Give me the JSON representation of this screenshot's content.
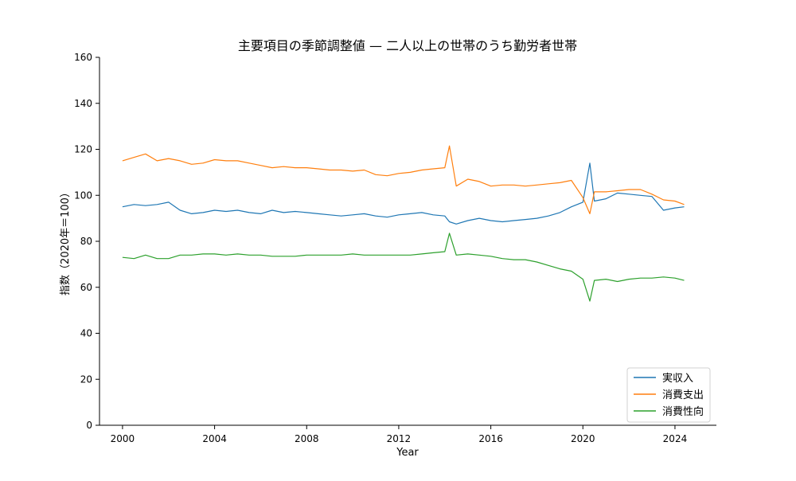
{
  "chart_data": {
    "type": "line",
    "title": "主要項目の季節調整値 — 二人以上の世帯のうち勤労者世帯",
    "xlabel": "Year",
    "ylabel": "指数（2020年＝100）",
    "xlim": [
      1999.0,
      2025.8
    ],
    "ylim": [
      0,
      160
    ],
    "x_ticks": [
      2000,
      2004,
      2008,
      2012,
      2016,
      2020,
      2024
    ],
    "y_ticks": [
      0,
      20,
      40,
      60,
      80,
      100,
      120,
      140,
      160
    ],
    "grid": false,
    "legend_position": "bottom-right",
    "x": [
      2000.0,
      2000.5,
      2001.0,
      2001.5,
      2002.0,
      2002.5,
      2003.0,
      2003.5,
      2004.0,
      2004.5,
      2005.0,
      2005.5,
      2006.0,
      2006.5,
      2007.0,
      2007.5,
      2008.0,
      2008.5,
      2009.0,
      2009.5,
      2010.0,
      2010.5,
      2011.0,
      2011.5,
      2012.0,
      2012.5,
      2013.0,
      2013.5,
      2014.0,
      2014.2,
      2014.5,
      2015.0,
      2015.5,
      2016.0,
      2016.5,
      2017.0,
      2017.5,
      2018.0,
      2018.5,
      2019.0,
      2019.5,
      2020.0,
      2020.3,
      2020.5,
      2021.0,
      2021.5,
      2022.0,
      2022.5,
      2023.0,
      2023.5,
      2024.0,
      2024.4
    ],
    "series": [
      {
        "name": "実収入",
        "color": "#1f77b4",
        "values": [
          95.0,
          96.0,
          95.5,
          96.0,
          97.0,
          93.5,
          92.0,
          92.5,
          93.5,
          93.0,
          93.5,
          92.5,
          92.0,
          93.5,
          92.5,
          93.0,
          92.5,
          92.0,
          91.5,
          91.0,
          91.5,
          92.0,
          91.0,
          90.5,
          91.5,
          92.0,
          92.5,
          91.5,
          91.0,
          88.5,
          87.5,
          89.0,
          90.0,
          89.0,
          88.5,
          89.0,
          89.5,
          90.0,
          91.0,
          92.5,
          95.0,
          97.0,
          114.0,
          97.5,
          98.5,
          101.0,
          100.5,
          100.0,
          99.5,
          93.5,
          94.5,
          95.0
        ]
      },
      {
        "name": "消費支出",
        "color": "#ff7f0e",
        "values": [
          115.0,
          116.5,
          118.0,
          115.0,
          116.0,
          115.0,
          113.5,
          114.0,
          115.5,
          115.0,
          115.0,
          114.0,
          113.0,
          112.0,
          112.5,
          112.0,
          112.0,
          111.5,
          111.0,
          111.0,
          110.5,
          111.0,
          109.0,
          108.5,
          109.5,
          110.0,
          111.0,
          111.5,
          112.0,
          121.5,
          104.0,
          107.0,
          106.0,
          104.0,
          104.5,
          104.5,
          104.0,
          104.5,
          105.0,
          105.5,
          106.5,
          99.0,
          92.0,
          101.5,
          101.5,
          102.0,
          102.5,
          102.5,
          100.5,
          98.0,
          97.5,
          96.0
        ]
      },
      {
        "name": "消費性向",
        "color": "#2ca02c",
        "values": [
          73.0,
          72.5,
          74.0,
          72.5,
          72.5,
          74.0,
          74.0,
          74.5,
          74.5,
          74.0,
          74.5,
          74.0,
          74.0,
          73.5,
          73.5,
          73.5,
          74.0,
          74.0,
          74.0,
          74.0,
          74.5,
          74.0,
          74.0,
          74.0,
          74.0,
          74.0,
          74.5,
          75.0,
          75.5,
          83.5,
          74.0,
          74.5,
          74.0,
          73.5,
          72.5,
          72.0,
          72.0,
          71.0,
          69.5,
          68.0,
          67.0,
          63.5,
          54.0,
          63.0,
          63.5,
          62.5,
          63.5,
          64.0,
          64.0,
          64.5,
          64.0,
          63.0
        ]
      }
    ]
  }
}
